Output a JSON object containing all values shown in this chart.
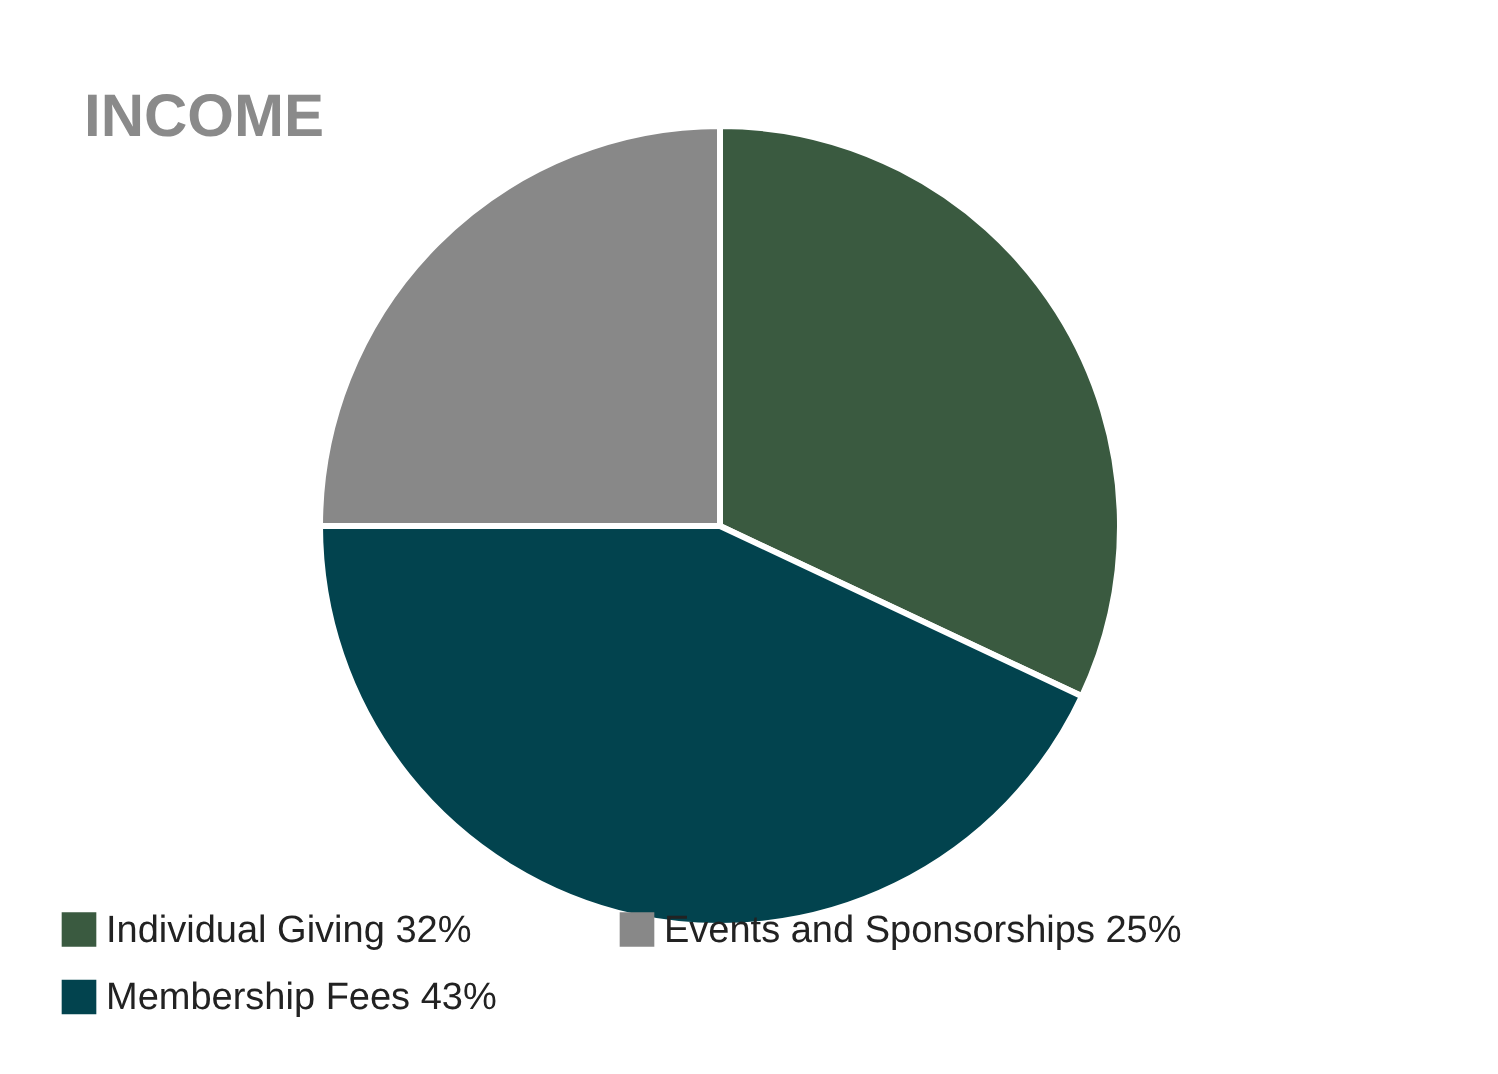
{
  "chart_data": {
    "type": "pie",
    "title": "INCOME",
    "categories": [
      "Individual Giving 32%",
      "Membership Fees 43%",
      "Events and Sponsorships 25%"
    ],
    "values": [
      32,
      43,
      25
    ],
    "colors": [
      "#3a5a40",
      "#02434e",
      "#888888"
    ],
    "legend": "bottom left"
  }
}
